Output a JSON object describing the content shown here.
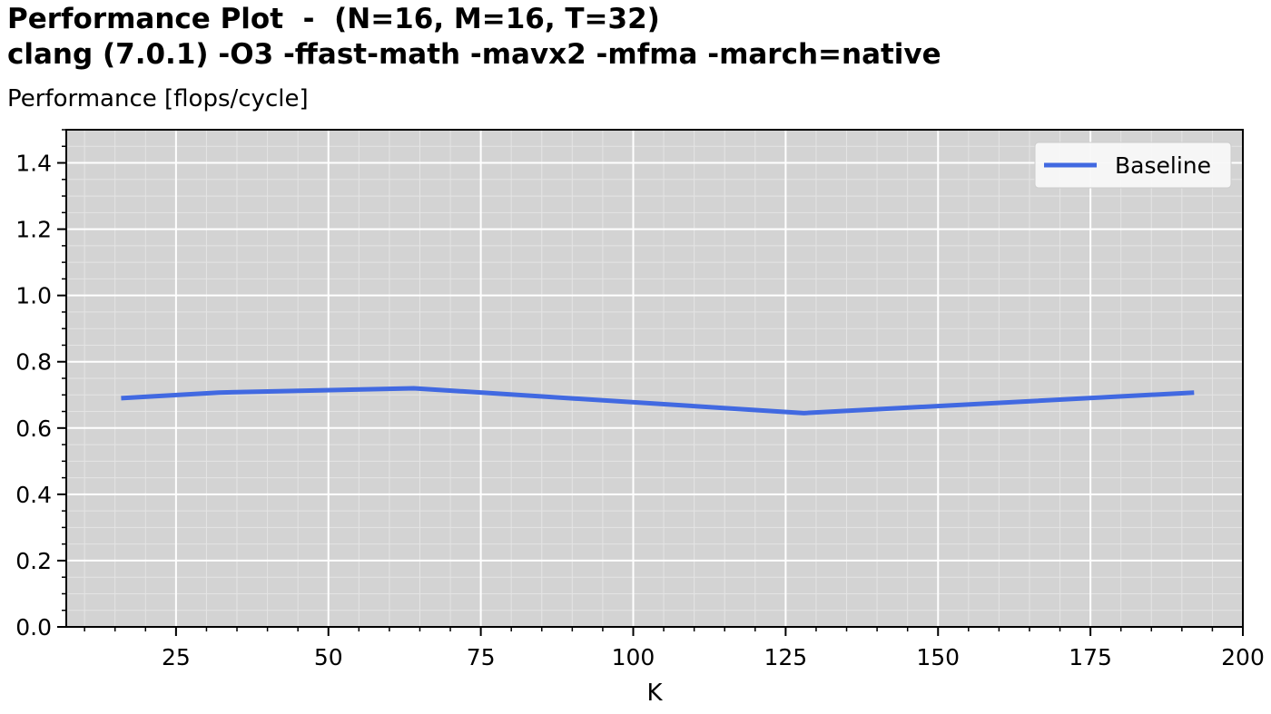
{
  "chart_data": {
    "type": "line",
    "title_line1": "Performance Plot  -  (N=16, M=16, T=32)",
    "title_line2": "clang (7.0.1) -O3 -ffast-math -mavx2 -mfma -march=native",
    "ylabel": "Performance [flops/cycle]",
    "xlabel": "K",
    "xlim": [
      7,
      200
    ],
    "ylim": [
      0,
      1.5
    ],
    "x_ticks": [
      25,
      50,
      75,
      100,
      125,
      150,
      175,
      200
    ],
    "y_ticks": [
      0.0,
      0.2,
      0.4,
      0.6,
      0.8,
      1.0,
      1.2,
      1.4
    ],
    "x_minor_step": 5,
    "y_minor_step": 0.05,
    "grid": true,
    "legend_position": "top-right",
    "series": [
      {
        "name": "Baseline",
        "color": "#4169e1",
        "x": [
          16,
          32,
          64,
          128,
          192
        ],
        "y": [
          0.69,
          0.707,
          0.72,
          0.645,
          0.707
        ]
      }
    ]
  }
}
